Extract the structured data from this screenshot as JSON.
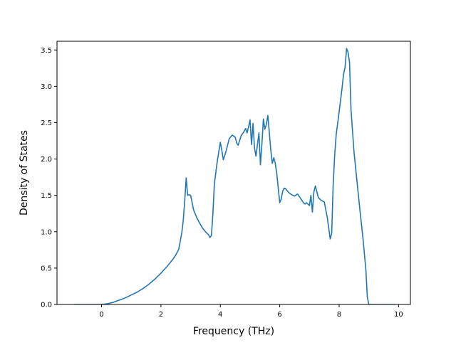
{
  "chart_data": {
    "type": "line",
    "title": "",
    "xlabel": "Frequency (THz)",
    "ylabel": "Density of States",
    "xlim": [
      -1.5,
      10.4
    ],
    "ylim": [
      0,
      3.62
    ],
    "x_ticks": [
      0,
      2,
      4,
      6,
      8,
      10
    ],
    "x_tick_labels": [
      "0",
      "2",
      "4",
      "6",
      "8",
      "10"
    ],
    "y_ticks": [
      0.0,
      0.5,
      1.0,
      1.5,
      2.0,
      2.5,
      3.0,
      3.5
    ],
    "y_tick_labels": [
      "0.0",
      "0.5",
      "1.0",
      "1.5",
      "2.0",
      "2.5",
      "3.0",
      "3.5"
    ],
    "grid": false,
    "line_color": "#1f77b4",
    "series": [
      {
        "x": [
          -0.92,
          -0.5,
          0.0,
          0.2,
          0.4,
          0.6,
          0.8,
          1.0,
          1.2,
          1.4,
          1.6,
          1.8,
          2.0,
          2.2,
          2.4,
          2.5,
          2.6,
          2.7,
          2.75,
          2.8,
          2.85,
          2.9,
          2.95,
          3.0,
          3.1,
          3.2,
          3.3,
          3.4,
          3.5,
          3.6,
          3.65,
          3.7,
          3.75,
          3.8,
          3.85,
          3.9,
          4.0,
          4.05,
          4.1,
          4.15,
          4.2,
          4.3,
          4.4,
          4.5,
          4.55,
          4.6,
          4.7,
          4.8,
          4.85,
          4.9,
          4.95,
          5.0,
          5.05,
          5.1,
          5.15,
          5.2,
          5.3,
          5.35,
          5.4,
          5.45,
          5.5,
          5.55,
          5.6,
          5.7,
          5.75,
          5.8,
          5.85,
          5.9,
          6.0,
          6.05,
          6.1,
          6.15,
          6.2,
          6.3,
          6.4,
          6.5,
          6.6,
          6.7,
          6.8,
          6.85,
          6.9,
          7.0,
          7.05,
          7.1,
          7.15,
          7.2,
          7.3,
          7.4,
          7.5,
          7.6,
          7.65,
          7.7,
          7.75,
          7.8,
          7.85,
          7.9,
          8.0,
          8.1,
          8.15,
          8.2,
          8.25,
          8.3,
          8.35,
          8.4,
          8.5,
          8.6,
          8.7,
          8.8,
          8.9,
          8.95,
          9.0,
          9.05,
          9.1,
          9.5,
          9.9
        ],
        "y": [
          0.0,
          0.0,
          0.0,
          0.01,
          0.03,
          0.06,
          0.09,
          0.13,
          0.17,
          0.22,
          0.28,
          0.35,
          0.43,
          0.52,
          0.62,
          0.68,
          0.76,
          0.98,
          1.15,
          1.42,
          1.74,
          1.5,
          1.51,
          1.5,
          1.3,
          1.2,
          1.12,
          1.05,
          1.0,
          0.96,
          0.92,
          0.95,
          1.25,
          1.66,
          1.82,
          1.98,
          2.23,
          2.12,
          1.99,
          2.05,
          2.12,
          2.28,
          2.33,
          2.3,
          2.22,
          2.19,
          2.32,
          2.38,
          2.42,
          2.36,
          2.44,
          2.54,
          2.2,
          2.49,
          2.15,
          2.04,
          2.36,
          1.92,
          2.21,
          2.55,
          2.41,
          2.48,
          2.6,
          2.12,
          1.94,
          2.02,
          1.94,
          1.8,
          1.4,
          1.45,
          1.56,
          1.6,
          1.59,
          1.54,
          1.51,
          1.49,
          1.52,
          1.46,
          1.4,
          1.38,
          1.4,
          1.36,
          1.5,
          1.27,
          1.55,
          1.63,
          1.47,
          1.43,
          1.41,
          1.2,
          1.05,
          0.9,
          0.98,
          1.65,
          2.05,
          2.33,
          2.65,
          2.98,
          3.17,
          3.26,
          3.52,
          3.47,
          3.33,
          2.68,
          2.1,
          1.7,
          1.3,
          0.92,
          0.48,
          0.1,
          0.0,
          0.0,
          0.0,
          0.0,
          0.0
        ]
      }
    ]
  }
}
